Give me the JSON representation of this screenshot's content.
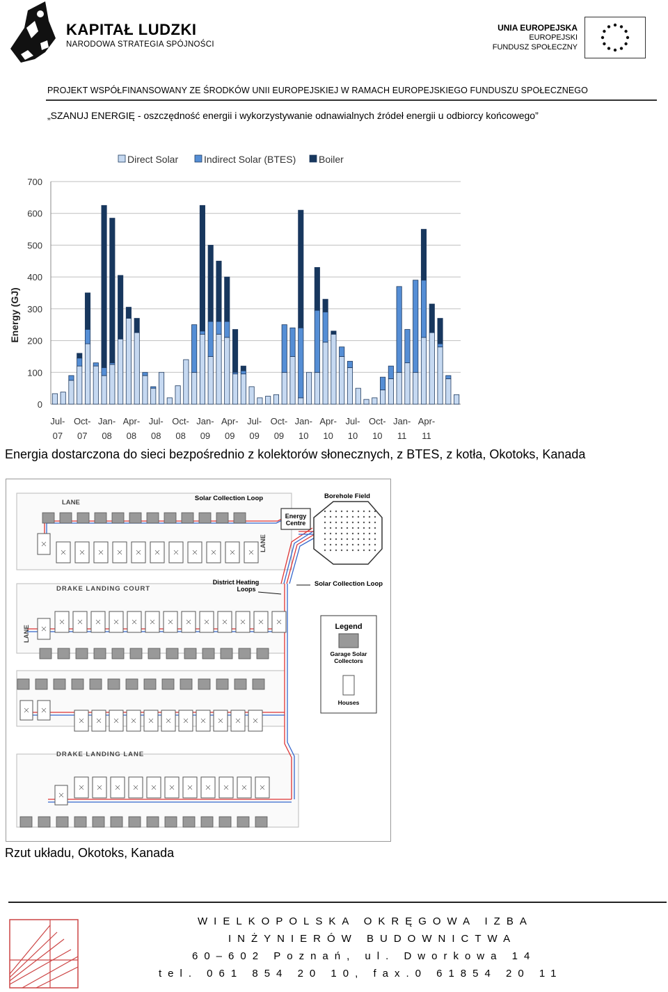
{
  "header": {
    "logo_title": "KAPITAŁ LUDZKI",
    "logo_subtitle": "NARODOWA STRATEGIA SPÓJNOŚCI",
    "eu_title": "UNIA EUROPEJSKA",
    "eu_sub1": "EUROPEJSKI",
    "eu_sub2": "FUNDUSZ SPOŁECZNY",
    "project_line": "PROJEKT WSPÓŁFINANSOWANY ZE ŚRODKÓW UNII EUROPEJSKIEJ W RAMACH EUROPEJSKIEGO FUNDUSZU SPOŁECZNEGO"
  },
  "subtitle": "„SZANUJ ENERGIĘ - oszczędność energii i wykorzystywanie odnawialnych źródeł energii u odbiorcy końcowego”",
  "chart_data": {
    "type": "bar",
    "stacked": true,
    "ylabel": "Energy (GJ)",
    "ylim": [
      0,
      700
    ],
    "yticks": [
      0,
      100,
      200,
      300,
      400,
      500,
      600,
      700
    ],
    "grid": true,
    "legend_position": "top",
    "tick_labels": [
      [
        "Jul-",
        "07"
      ],
      [
        "Oct-",
        "07"
      ],
      [
        "Jan-",
        "08"
      ],
      [
        "Apr-",
        "08"
      ],
      [
        "Jul-",
        "08"
      ],
      [
        "Oct-",
        "08"
      ],
      [
        "Jan-",
        "09"
      ],
      [
        "Apr-",
        "09"
      ],
      [
        "Jul-",
        "09"
      ],
      [
        "Oct-",
        "09"
      ],
      [
        "Jan-",
        "10"
      ],
      [
        "Apr-",
        "10"
      ],
      [
        "Jul-",
        "10"
      ],
      [
        "Oct-",
        "10"
      ],
      [
        "Jan-",
        "11"
      ],
      [
        "Apr-",
        "11"
      ]
    ],
    "series": [
      {
        "name": "Direct Solar",
        "color": "#c6d9f1",
        "values": [
          33,
          38,
          75,
          120,
          190,
          120,
          90,
          125,
          205,
          270,
          225,
          90,
          50,
          100,
          20,
          58,
          140,
          100,
          220,
          150,
          220,
          210,
          95,
          95,
          55,
          20,
          25,
          30,
          100,
          150,
          20,
          100,
          100,
          195,
          220,
          150,
          115,
          50,
          15,
          20,
          45,
          80,
          100,
          130,
          100,
          210,
          225,
          180,
          80,
          30
        ]
      },
      {
        "name": "Indirect Solar (BTES)",
        "color": "#558ed5",
        "values": [
          0,
          0,
          15,
          25,
          45,
          10,
          25,
          5,
          0,
          0,
          0,
          10,
          5,
          0,
          0,
          0,
          0,
          150,
          10,
          110,
          40,
          50,
          5,
          10,
          0,
          0,
          0,
          0,
          150,
          90,
          220,
          0,
          195,
          95,
          0,
          30,
          20,
          0,
          0,
          0,
          40,
          40,
          270,
          105,
          290,
          180,
          0,
          10,
          10,
          0
        ]
      },
      {
        "name": "Boiler",
        "color": "#17375e",
        "values": [
          0,
          0,
          0,
          15,
          115,
          0,
          510,
          455,
          200,
          35,
          45,
          0,
          0,
          0,
          0,
          0,
          0,
          0,
          395,
          240,
          190,
          140,
          135,
          15,
          0,
          0,
          0,
          0,
          0,
          0,
          370,
          0,
          135,
          40,
          10,
          0,
          0,
          0,
          0,
          0,
          0,
          0,
          0,
          0,
          0,
          160,
          90,
          80,
          0,
          0
        ]
      }
    ]
  },
  "caption1": "Energia dostarczona do sieci bezpośrednio z kolektorów słonecznych, z BTES, z kotła, Okotoks, Kanada",
  "plan": {
    "lane_top": "LANE",
    "lane_right": "LANE",
    "lane_left": "LANE",
    "solar_loop_top": "Solar Collection Loop",
    "borehole": "Borehole Field",
    "energy_centre_1": "Energy",
    "energy_centre_2": "Centre",
    "district_heating_1": "District Heating",
    "district_heating_2": "Loops",
    "solar_loop_mid": "Solar Collection Loop",
    "court": "DRAKE LANDING COURT",
    "landing_lane": "DRAKE LANDING LANE",
    "legend_title": "Legend",
    "legend_garage_1": "Garage Solar",
    "legend_garage_2": "Collectors",
    "legend_houses": "Houses"
  },
  "caption2": "Rzut układu, Okotoks, Kanada",
  "footer": {
    "line1": "WIELKOPOLSKA OKRĘGOWA IZBA",
    "line2": "INŻYNIERÓW BUDOWNICTWA",
    "line3": "60–602 Poznań, ul. Dworkowa 14",
    "line4": "tel. 061 854 20 10, fax.0 61854 20 11"
  }
}
